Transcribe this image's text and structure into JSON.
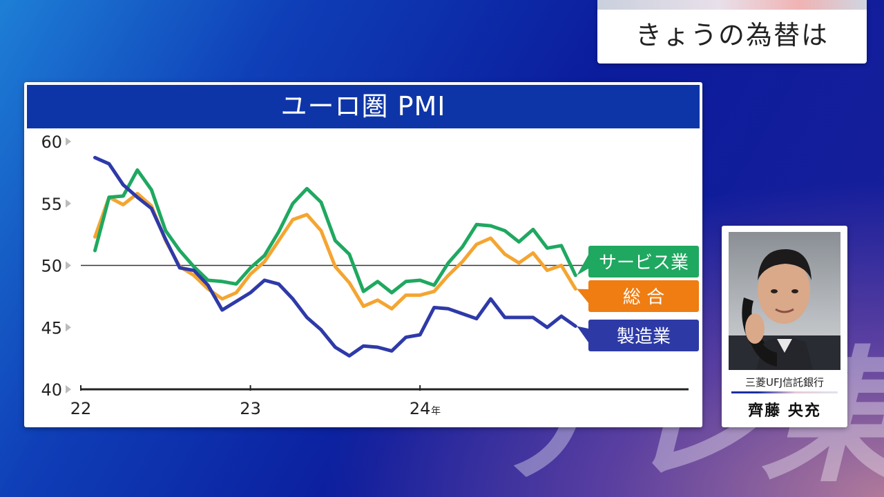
{
  "watermark": "テレ東",
  "header": {
    "title": "きょうの為替は"
  },
  "chart_data": {
    "type": "line",
    "title": "ユーロ圏 PMI",
    "x_tick_labels": [
      {
        "t": 0,
        "label": "22",
        "suffix": ""
      },
      {
        "t": 12,
        "label": "23",
        "suffix": ""
      },
      {
        "t": 24,
        "label": "24",
        "suffix": "年"
      }
    ],
    "y_ticks": [
      40,
      45,
      50,
      55,
      60
    ],
    "ylim": [
      40,
      60
    ],
    "xlim": [
      0,
      43
    ],
    "reference_line": 50,
    "series": [
      {
        "name": "サービス業",
        "color": "#1fa860",
        "values": [
          51.2,
          55.5,
          55.6,
          57.7,
          56.1,
          52.8,
          51.2,
          49.9,
          48.8,
          48.7,
          48.5,
          49.8,
          50.8,
          52.7,
          55.0,
          56.2,
          55.1,
          52.0,
          50.9,
          47.9,
          48.7,
          47.8,
          48.7,
          48.8,
          48.4,
          50.2,
          51.5,
          53.3,
          53.2,
          52.8,
          51.9,
          52.9,
          51.4,
          51.6,
          49.2
        ]
      },
      {
        "name": "総 合",
        "color": "#f4a531",
        "values": [
          52.3,
          55.5,
          54.9,
          55.8,
          54.8,
          52.0,
          49.9,
          49.2,
          48.1,
          47.3,
          47.8,
          49.3,
          50.3,
          52.0,
          53.7,
          54.1,
          52.8,
          49.9,
          48.6,
          46.7,
          47.2,
          46.5,
          47.6,
          47.6,
          47.9,
          49.2,
          50.3,
          51.7,
          52.2,
          50.9,
          50.2,
          51.0,
          49.6,
          50.0,
          48.1
        ]
      },
      {
        "name": "製造業",
        "color": "#2e3aa8",
        "values": [
          58.7,
          58.2,
          56.5,
          55.5,
          54.6,
          52.1,
          49.8,
          49.6,
          48.4,
          46.4,
          47.1,
          47.8,
          48.8,
          48.5,
          47.3,
          45.8,
          44.8,
          43.4,
          42.7,
          43.5,
          43.4,
          43.1,
          44.2,
          44.4,
          46.6,
          46.5,
          46.1,
          45.7,
          47.3,
          45.8,
          45.8,
          45.8,
          45.0,
          45.9,
          45.1
        ]
      }
    ]
  },
  "legend": [
    {
      "label": "サービス業",
      "color": "#1fa860"
    },
    {
      "label": "総 合",
      "color": "#ef7d12"
    },
    {
      "label": "製造業",
      "color": "#2d3aa6"
    }
  ],
  "guest": {
    "company": "三菱UFJ信託銀行",
    "name": "齊藤 央充"
  }
}
